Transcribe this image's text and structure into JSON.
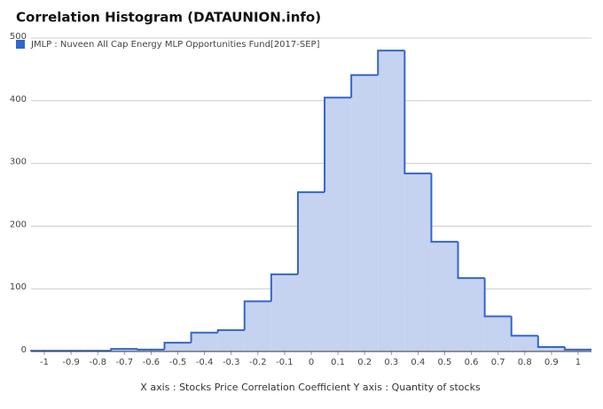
{
  "chart_data": {
    "type": "histogram",
    "title": "Correlation Histogram (DATAUNION.info)",
    "axis_note": "X axis : Stocks Price Correlation Coefficient  Y axis : Quantity of stocks",
    "bins": [
      -1.05,
      -0.95,
      -0.85,
      -0.75,
      -0.65,
      -0.55,
      -0.45,
      -0.35,
      -0.25,
      -0.15,
      -0.05,
      0.05,
      0.15,
      0.25,
      0.35,
      0.45,
      0.55,
      0.65,
      0.75,
      0.85,
      0.95,
      1.05
    ],
    "series": [
      {
        "name": "JMLP : Nuveen All Cap Energy MLP Opportunities Fund[2017-SEP]",
        "color": "#3366cc",
        "fill": "#c5d2f0",
        "values": [
          1,
          1,
          1,
          4,
          3,
          14,
          30,
          34,
          80,
          123,
          254,
          405,
          441,
          480,
          284,
          175,
          117,
          56,
          25,
          7,
          3
        ]
      }
    ],
    "xlim": [
      -1.05,
      1.05
    ],
    "xticks": [
      -1,
      -0.9,
      -0.8,
      -0.7,
      -0.6,
      -0.5,
      -0.4,
      -0.3,
      -0.2,
      -0.1,
      0,
      0.1,
      0.2,
      0.3,
      0.4,
      0.5,
      0.6,
      0.7,
      0.8,
      0.9,
      1
    ],
    "ylim": [
      0,
      500
    ],
    "yticks": [
      0,
      100,
      200,
      300,
      400,
      500
    ],
    "grid": true
  }
}
